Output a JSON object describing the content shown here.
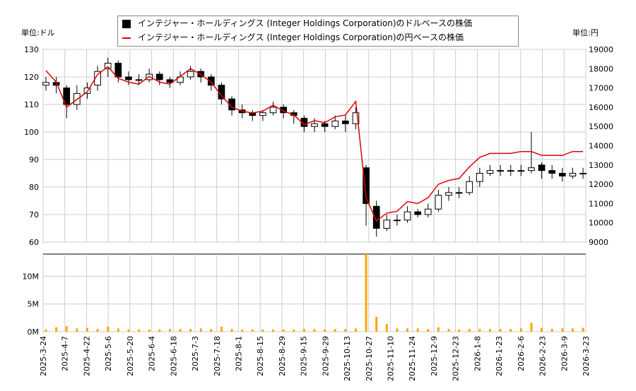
{
  "chart_data": {
    "type": "candlestick+line+bar",
    "left_axis_label": "単位:ドル",
    "right_axis_label": "単位:円",
    "legend": [
      "インテジャー・ホールディングス (Integer Holdings Corporation)のドルベースの株価",
      "インテジャー・ホールディングス (Integer Holdings Corporation)の円ベースの株価"
    ],
    "usd_ylim": [
      60,
      130
    ],
    "usd_ticks": [
      60,
      70,
      80,
      90,
      100,
      110,
      120,
      130
    ],
    "jpy_ylim": [
      9000,
      19000
    ],
    "jpy_ticks": [
      9000,
      10000,
      11000,
      12000,
      13000,
      14000,
      15000,
      16000,
      17000,
      18000,
      19000
    ],
    "volume_ylim": [
      0,
      14000000
    ],
    "volume_ticks": [
      {
        "v": 0,
        "label": "0M"
      },
      {
        "v": 5000000,
        "label": "5M"
      },
      {
        "v": 10000000,
        "label": "10M"
      }
    ],
    "x_ticks": [
      "2025-3-24",
      "2025-4-7",
      "2025-4-22",
      "2025-5-6",
      "2025-5-20",
      "2025-6-4",
      "2025-6-18",
      "2025-7-3",
      "2025-7-18",
      "2025-8-1",
      "2025-8-15",
      "2025-8-29",
      "2025-9-15",
      "2025-9-29",
      "2025-10-13",
      "2025-10-27",
      "2025-11-10",
      "2025-11-24",
      "2025-12-9",
      "2025-12-23",
      "2026-1-8",
      "2026-1-23",
      "2026-2-6",
      "2026-2-23",
      "2026-3-9",
      "2026-3-23"
    ],
    "usd_close": [
      118,
      117,
      110,
      114,
      116,
      122,
      125,
      120,
      119,
      119,
      121,
      119,
      118,
      120,
      122,
      120,
      117,
      112,
      108,
      107,
      106,
      107,
      109,
      107,
      106,
      102,
      103,
      102,
      104,
      103,
      107,
      74,
      65,
      68,
      68,
      71,
      70,
      72,
      77,
      78,
      78,
      82,
      85,
      86,
      86,
      86,
      86,
      87,
      86,
      85,
      84,
      85,
      85
    ],
    "usd_open": [
      117,
      118,
      116,
      110,
      114,
      117,
      123,
      125,
      120,
      119,
      119,
      121,
      119,
      118,
      120,
      122,
      120,
      117,
      112,
      108,
      107,
      106,
      107,
      109,
      107,
      105,
      102,
      103,
      102,
      104,
      103,
      87,
      73,
      65,
      68,
      68,
      71,
      70,
      72,
      77,
      78,
      78,
      82,
      85,
      86,
      86,
      86,
      86,
      88,
      86,
      85,
      84,
      85
    ],
    "usd_high": [
      120,
      120,
      117,
      117,
      118,
      124,
      127,
      126,
      122,
      121,
      123,
      122,
      120,
      122,
      124,
      123,
      121,
      118,
      113,
      110,
      108,
      108,
      111,
      110,
      108,
      106,
      105,
      104,
      106,
      106,
      109,
      88,
      75,
      70,
      70,
      73,
      72,
      74,
      79,
      80,
      80,
      84,
      87,
      88,
      88,
      88,
      88,
      100,
      89,
      88,
      87,
      87,
      87
    ],
    "usd_low": [
      115,
      114,
      105,
      108,
      112,
      115,
      120,
      118,
      117,
      117,
      118,
      117,
      116,
      117,
      119,
      118,
      115,
      110,
      106,
      105,
      104,
      104,
      106,
      105,
      103,
      100,
      100,
      100,
      101,
      100,
      101,
      66,
      62,
      64,
      66,
      67,
      69,
      69,
      71,
      75,
      76,
      77,
      80,
      84,
      84,
      84,
      84,
      85,
      83,
      83,
      82,
      83,
      83
    ],
    "jpy_close": [
      17900,
      17300,
      16000,
      16400,
      16800,
      17700,
      18100,
      17500,
      17300,
      17200,
      17600,
      17300,
      17200,
      17600,
      18000,
      17700,
      17300,
      16600,
      16000,
      15800,
      15700,
      15800,
      16100,
      15800,
      15600,
      15100,
      15300,
      15200,
      15500,
      15600,
      16300,
      11300,
      10100,
      10500,
      10600,
      11100,
      11000,
      11300,
      12000,
      12200,
      12300,
      12900,
      13400,
      13600,
      13600,
      13600,
      13700,
      13700,
      13500,
      13500,
      13500,
      13700,
      13700
    ],
    "volume": [
      400000,
      800000,
      1000000,
      600000,
      700000,
      500000,
      900000,
      600000,
      400000,
      400000,
      400000,
      400000,
      500000,
      500000,
      500000,
      600000,
      500000,
      900000,
      500000,
      400000,
      400000,
      400000,
      400000,
      400000,
      400000,
      500000,
      500000,
      400000,
      500000,
      500000,
      600000,
      14000000,
      2700000,
      1400000,
      600000,
      600000,
      600000,
      500000,
      800000,
      500000,
      400000,
      500000,
      500000,
      500000,
      500000,
      500000,
      600000,
      1600000,
      700000,
      500000,
      600000,
      600000,
      700000
    ]
  },
  "colors": {
    "candle": "#000000",
    "jpy_line": "#e00000",
    "volume": "#ffa500",
    "grid": "#cccccc"
  }
}
